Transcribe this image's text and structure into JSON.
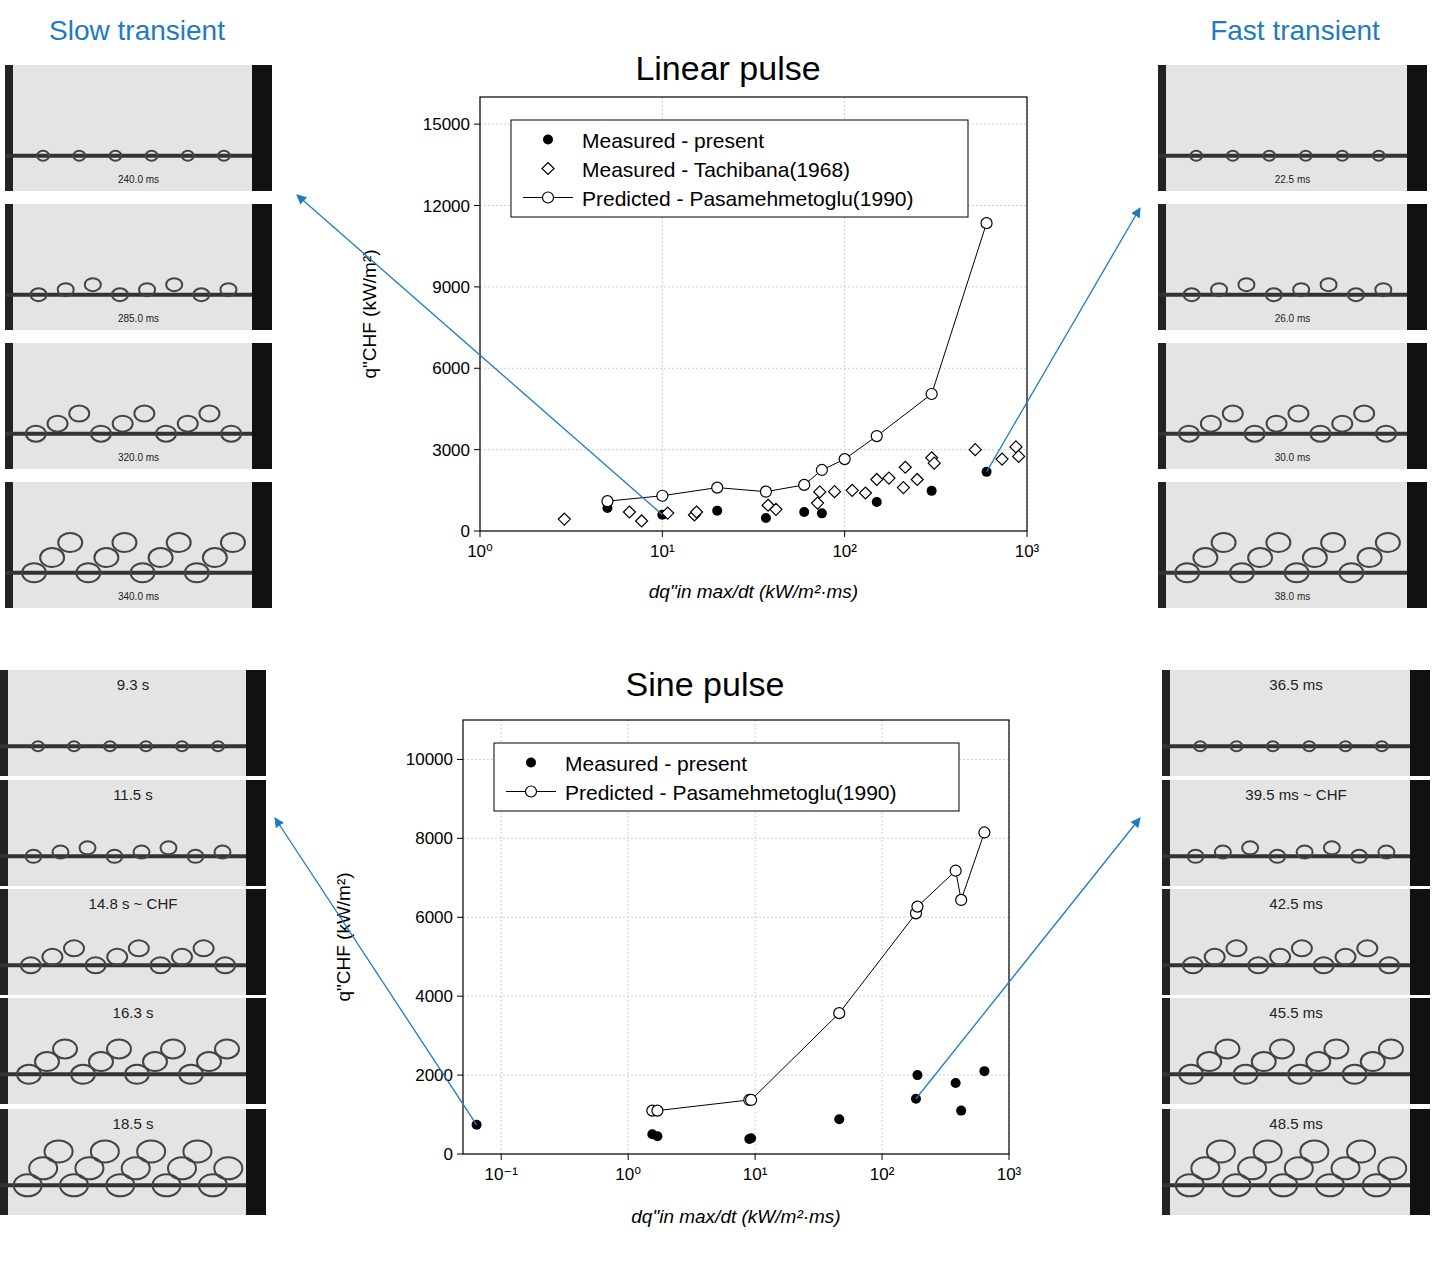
{
  "chart_data": [
    {
      "type": "scatter",
      "title": "Linear pulse",
      "x_label": "dq\"in max/dt (kW/m²·ms)",
      "y_label": "q\"CHF (kW/m²)",
      "log": "x",
      "grid": true,
      "legend": "upper left",
      "xlim": [
        1,
        1000
      ],
      "xticks": [
        {
          "value": 1,
          "label": "10⁰"
        },
        {
          "value": 10,
          "label": "10¹"
        },
        {
          "value": 100,
          "label": "10²"
        },
        {
          "value": 1000,
          "label": "10³"
        }
      ],
      "ylim": [
        0,
        16000
      ],
      "yticks": [
        0,
        3000,
        6000,
        9000,
        12000,
        15000
      ],
      "series": [
        {
          "name": "Measured - present",
          "color": "#000000",
          "marker": "filled-circle",
          "line_style": "none",
          "x": [
            5,
            10,
            20,
            37,
            60,
            75,
            150,
            300,
            600
          ],
          "values": [
            850,
            600,
            750,
            480,
            700,
            650,
            1070,
            1480,
            2180
          ]
        },
        {
          "name": "Measured - Tachibana(1968)",
          "color": "#000000",
          "marker": "open-diamond",
          "line_style": "none",
          "x": [
            2.9,
            6.6,
            7.7,
            10.7,
            15,
            15.4,
            38,
            42,
            71,
            73,
            88,
            110,
            130,
            150,
            175,
            210,
            215,
            250,
            300,
            310,
            520,
            730,
            870,
            900
          ],
          "values": [
            440,
            700,
            370,
            660,
            590,
            700,
            950,
            800,
            1030,
            1440,
            1450,
            1500,
            1400,
            1900,
            1950,
            1600,
            2350,
            1900,
            2700,
            2500,
            3000,
            2650,
            3100,
            2750
          ]
        },
        {
          "name": "Predicted - Pasamehmetoglu(1990)",
          "color": "#000000",
          "marker": "open-circle",
          "line_style": "solid",
          "x": [
            5,
            10,
            20,
            37,
            60,
            75,
            100,
            150,
            300,
            600
          ],
          "values": [
            1100,
            1300,
            1600,
            1450,
            1700,
            2250,
            2650,
            3500,
            5050,
            11350
          ]
        }
      ]
    },
    {
      "type": "scatter",
      "title": "Sine pulse",
      "x_label": "dq\"in max/dt (kW/m²·ms)",
      "y_label": "q\"CHF (kW/m²)",
      "log": "x",
      "grid": true,
      "legend": "upper left",
      "xlim": [
        0.05,
        1000
      ],
      "xticks": [
        {
          "value": 0.1,
          "label": "10⁻¹"
        },
        {
          "value": 1,
          "label": "10⁰"
        },
        {
          "value": 10,
          "label": "10¹"
        },
        {
          "value": 100,
          "label": "10²"
        },
        {
          "value": 1000,
          "label": "10³"
        }
      ],
      "ylim": [
        0,
        11000
      ],
      "yticks": [
        0,
        2000,
        4000,
        6000,
        8000,
        10000
      ],
      "series": [
        {
          "name": "Measured - present",
          "color": "#000000",
          "marker": "filled-circle",
          "line_style": "none",
          "x": [
            0.064,
            1.55,
            1.7,
            9,
            9.3,
            46,
            185,
            190,
            380,
            420,
            640
          ],
          "values": [
            740,
            500,
            450,
            380,
            400,
            880,
            1400,
            2000,
            1800,
            1100,
            2100
          ]
        },
        {
          "name": "Predicted - Pasamehmetoglu(1990)",
          "color": "#000000",
          "marker": "open-circle",
          "line_style": "solid",
          "x": [
            1.55,
            1.7,
            9,
            9.3,
            46,
            185,
            190,
            380,
            420,
            640
          ],
          "values": [
            1100,
            1100,
            1370,
            1370,
            3570,
            6100,
            6270,
            7180,
            6440,
            8150
          ]
        }
      ]
    }
  ],
  "headers": {
    "slow": "Slow transient",
    "fast": "Fast transient"
  },
  "photos": {
    "linear_slow": [
      "240.0 ms",
      "285.0 ms",
      "320.0 ms",
      "340.0 ms"
    ],
    "linear_fast": [
      "22.5 ms",
      "26.0 ms",
      "30.0 ms",
      "38.0 ms"
    ],
    "sine_slow": [
      "9.3 s",
      "11.5 s",
      "14.8 s ~ CHF",
      "16.3 s",
      "18.5 s"
    ],
    "sine_fast": [
      "36.5 ms",
      "39.5 ms ~ CHF",
      "42.5 ms",
      "45.5 ms",
      "48.5 ms"
    ]
  }
}
